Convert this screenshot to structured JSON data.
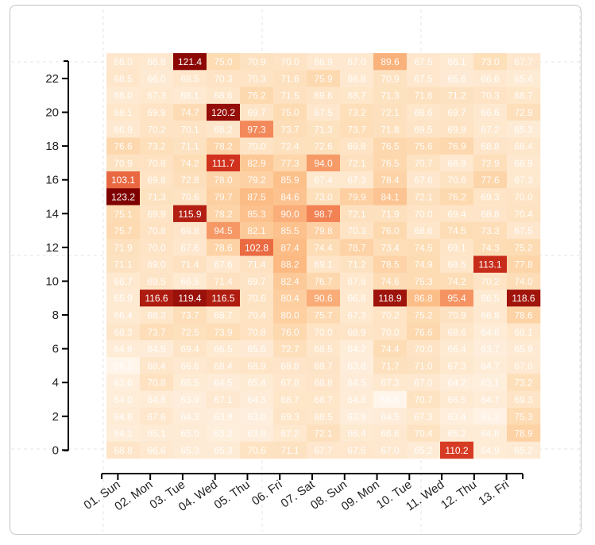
{
  "chart_data": {
    "type": "heatmap",
    "title": "",
    "xlabel": "",
    "ylabel": "",
    "x_categories": [
      "01. Sun",
      "02. Mon",
      "03. Tue",
      "04. Wed",
      "05. Thu",
      "06. Fri",
      "07. Sat",
      "08. Sun",
      "09. Mon",
      "10. Tue",
      "11. Wed",
      "12. Thu",
      "13. Fri"
    ],
    "y_ticks": [
      0,
      2,
      4,
      6,
      8,
      10,
      12,
      14,
      16,
      18,
      20,
      22
    ],
    "y_range": [
      0,
      23
    ],
    "color_scale": {
      "low": "#fff5eb",
      "high": "#7f0000"
    },
    "grid": "dashed-faint",
    "rows_top_to_bottom": [
      [
        68.0,
        66.8,
        121.4,
        75.0,
        70.9,
        70.0,
        66.9,
        67.0,
        89.6,
        67.5,
        66.1,
        73.0,
        67.7
      ],
      [
        68.5,
        66.0,
        68.5,
        70.3,
        70.3,
        71.6,
        75.9,
        66.8,
        70.9,
        67.5,
        65.6,
        66.6,
        65.4
      ],
      [
        66.0,
        67.3,
        66.1,
        68.6,
        76.2,
        71.5,
        69.6,
        68.7,
        71.3,
        71.6,
        71.2,
        70.3,
        68.7
      ],
      [
        68.1,
        69.9,
        74.7,
        120.2,
        69.7,
        75.0,
        67.5,
        73.2,
        72.1,
        68.6,
        69.7,
        66.6,
        72.9
      ],
      [
        66.9,
        70.2,
        70.1,
        68.2,
        97.3,
        73.7,
        71.3,
        73.7,
        71.8,
        69.5,
        69.9,
        67.2,
        65.3
      ],
      [
        76.6,
        73.2,
        71.1,
        78.2,
        70.0,
        72.4,
        72.6,
        69.8,
        76.5,
        75.6,
        76.9,
        68.8,
        68.4
      ],
      [
        70.9,
        70.8,
        74.2,
        111.7,
        82.9,
        77.3,
        94.0,
        72.1,
        76.5,
        70.7,
        66.9,
        72.9,
        66.9
      ],
      [
        103.1,
        69.8,
        72.8,
        78.0,
        79.2,
        85.9,
        67.4,
        67.3,
        78.4,
        67.6,
        70.6,
        77.6,
        67.3
      ],
      [
        123.2,
        71.3,
        70.6,
        79.7,
        87.5,
        84.6,
        73.0,
        79.9,
        84.1,
        72.1,
        76.2,
        69.3,
        70.0
      ],
      [
        75.1,
        69.9,
        115.9,
        78.2,
        85.3,
        90.0,
        98.7,
        72.1,
        71.9,
        70.0,
        69.4,
        68.8,
        70.4
      ],
      [
        75.7,
        70.8,
        68.8,
        94.5,
        82.1,
        85.5,
        79.8,
        70.3,
        76.0,
        68.6,
        74.5,
        73.3,
        67.5
      ],
      [
        71.9,
        70.0,
        67.6,
        78.6,
        102.8,
        87.4,
        74.4,
        78.7,
        73.4,
        74.5,
        69.1,
        74.3,
        75.2
      ],
      [
        71.1,
        69.0,
        71.4,
        67.6,
        71.4,
        88.2,
        69.1,
        71.2,
        78.5,
        74.9,
        68.5,
        113.1,
        77.8
      ],
      [
        66.7,
        69.5,
        66.5,
        71.4,
        69.7,
        82.4,
        76.7,
        67.8,
        74.6,
        75.3,
        74.2,
        70.2,
        74.0
      ],
      [
        65.9,
        116.6,
        119.4,
        116.5,
        70.6,
        80.4,
        90.6,
        66.8,
        118.9,
        86.8,
        95.4,
        66.5,
        118.6
      ],
      [
        66.4,
        68.3,
        73.7,
        68.7,
        70.4,
        80.0,
        75.7,
        67.3,
        70.2,
        75.2,
        70.9,
        66.8,
        78.6
      ],
      [
        68.3,
        73.7,
        72.5,
        73.9,
        70.8,
        76.0,
        70.0,
        68.9,
        70.0,
        76.6,
        68.6,
        64.6,
        68.1
      ],
      [
        64.9,
        64.5,
        69.4,
        66.5,
        65.6,
        72.7,
        68.5,
        64.2,
        74.4,
        70.0,
        66.4,
        63.7,
        65.9
      ],
      [
        59.1,
        68.4,
        66.6,
        68.4,
        68.9,
        68.8,
        69.7,
        63.8,
        71.7,
        71.0,
        67.3,
        64.7,
        67.0
      ],
      [
        63.6,
        70.8,
        65.5,
        64.5,
        65.4,
        67.8,
        68.8,
        64.5,
        67.3,
        67.0,
        64.2,
        63.1,
        73.2
      ],
      [
        64.0,
        64.8,
        63.9,
        67.1,
        64.3,
        68.7,
        68.7,
        64.8,
        58.8,
        70.7,
        66.5,
        64.7,
        69.3
      ],
      [
        64.6,
        67.6,
        64.3,
        63.9,
        63.0,
        69.3,
        68.5,
        63.9,
        64.5,
        67.3,
        63.4,
        61.2,
        75.3
      ],
      [
        64.1,
        65.1,
        65.0,
        63.2,
        63.8,
        67.2,
        72.1,
        66.4,
        66.6,
        70.4,
        65.2,
        64.8,
        78.9
      ],
      [
        68.8,
        66.6,
        65.3,
        65.3,
        70.6,
        71.1,
        67.7,
        67.5,
        67.0,
        65.2,
        110.2,
        64.9,
        65.2
      ]
    ]
  }
}
